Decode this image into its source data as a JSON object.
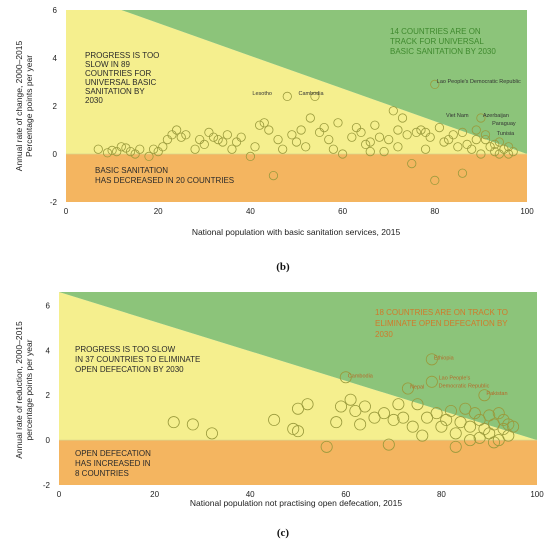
{
  "colors": {
    "green": "#8cc47a",
    "yellow": "#f5ef8e",
    "orange": "#f4b560",
    "marker": "#9a9a3c",
    "axis": "#222222"
  },
  "chart_data": [
    {
      "panel": "(b)",
      "type": "scatter",
      "xlabel": "National population with basic sanitation services, 2015",
      "ylabel": [
        "Annual rate of change, 2000–2015",
        "Percentage points per year"
      ],
      "xlim": [
        0,
        100
      ],
      "ylim": [
        -2,
        6
      ],
      "xticks": [
        "0",
        "20",
        "40",
        "60",
        "80",
        "100"
      ],
      "yticks": [
        "-2",
        "0",
        "2",
        "4",
        "6"
      ],
      "threshold_line": {
        "x": [
          12,
          100
        ],
        "y": [
          6,
          0
        ]
      },
      "regions": {
        "yellow": [
          "PROGRESS IS TOO",
          "SLOW IN 89",
          "COUNTRIES FOR",
          "UNIVERSAL BASIC",
          "SANITATION BY",
          "2030"
        ],
        "green": [
          "14 COUNTRIES ARE ON",
          "TRACK FOR UNIVERSAL",
          "BASIC SANITATION BY 2030"
        ],
        "orange": [
          "BASIC SANITATION",
          "HAS DECREASED IN 20 COUNTRIES"
        ]
      },
      "annotations": [
        {
          "text": "Lesotho",
          "x": 40,
          "y": 2.45
        },
        {
          "text": "Cambodia",
          "x": 50,
          "y": 2.45
        },
        {
          "text": "Lao People's Democratic Republic",
          "x": 80,
          "y": 2.95
        },
        {
          "text": "Viet Nam",
          "x": 82,
          "y": 1.55
        },
        {
          "text": "Azerbaijan",
          "x": 90,
          "y": 1.55
        },
        {
          "text": "Paraguay",
          "x": 92,
          "y": 1.2
        },
        {
          "text": "Tunisia",
          "x": 93,
          "y": 0.8
        }
      ],
      "points": [
        [
          7,
          0.2
        ],
        [
          9,
          0.05
        ],
        [
          10,
          0.15
        ],
        [
          11,
          0.1
        ],
        [
          12,
          0.3
        ],
        [
          13,
          0.25
        ],
        [
          14,
          0.1
        ],
        [
          15,
          0.0
        ],
        [
          16,
          0.2
        ],
        [
          18,
          -0.1
        ],
        [
          19,
          0.2
        ],
        [
          20,
          0.1
        ],
        [
          21,
          0.3
        ],
        [
          22,
          0.6
        ],
        [
          23,
          0.8
        ],
        [
          24,
          1.0
        ],
        [
          25,
          0.7
        ],
        [
          26,
          0.8
        ],
        [
          28,
          0.2
        ],
        [
          29,
          0.6
        ],
        [
          30,
          0.4
        ],
        [
          31,
          0.9
        ],
        [
          32,
          0.7
        ],
        [
          33,
          0.6
        ],
        [
          34,
          0.5
        ],
        [
          35,
          0.8
        ],
        [
          36,
          0.2
        ],
        [
          37,
          0.5
        ],
        [
          38,
          0.7
        ],
        [
          40,
          -0.1
        ],
        [
          41,
          0.3
        ],
        [
          42,
          1.2
        ],
        [
          43,
          1.3
        ],
        [
          44,
          1.0
        ],
        [
          45,
          -0.9
        ],
        [
          46,
          0.6
        ],
        [
          47,
          0.2
        ],
        [
          48,
          2.4
        ],
        [
          49,
          0.8
        ],
        [
          50,
          0.5
        ],
        [
          51,
          1.0
        ],
        [
          52,
          0.3
        ],
        [
          53,
          1.5
        ],
        [
          54,
          2.4
        ],
        [
          55,
          0.9
        ],
        [
          56,
          1.1
        ],
        [
          57,
          0.6
        ],
        [
          58,
          0.2
        ],
        [
          59,
          1.3
        ],
        [
          60,
          0.0
        ],
        [
          62,
          0.7
        ],
        [
          63,
          1.1
        ],
        [
          64,
          0.9
        ],
        [
          65,
          0.4
        ],
        [
          66,
          0.5
        ],
        [
          67,
          1.2
        ],
        [
          68,
          0.7
        ],
        [
          69,
          0.1
        ],
        [
          70,
          0.6
        ],
        [
          71,
          1.8
        ],
        [
          72,
          0.3
        ],
        [
          73,
          1.5
        ],
        [
          74,
          0.8
        ],
        [
          75,
          -0.4
        ],
        [
          76,
          0.9
        ],
        [
          77,
          1.0
        ],
        [
          78,
          0.2
        ],
        [
          79,
          0.7
        ],
        [
          80,
          -1.1
        ],
        [
          80,
          2.9
        ],
        [
          81,
          1.1
        ],
        [
          82,
          0.5
        ],
        [
          83,
          0.6
        ],
        [
          84,
          0.8
        ],
        [
          85,
          0.3
        ],
        [
          86,
          -0.8
        ],
        [
          87,
          0.4
        ],
        [
          88,
          0.2
        ],
        [
          89,
          0.6
        ],
        [
          90,
          1.5
        ],
        [
          91,
          0.8
        ],
        [
          92,
          0.3
        ],
        [
          93,
          0.1
        ],
        [
          94,
          0.5
        ],
        [
          95,
          0.2
        ],
        [
          96,
          0.0
        ],
        [
          97,
          0.1
        ],
        [
          89,
          1.0
        ],
        [
          86,
          0.9
        ],
        [
          78,
          0.9
        ],
        [
          93,
          0.4
        ],
        [
          91,
          0.6
        ],
        [
          94,
          0.0
        ],
        [
          72,
          1.0
        ],
        [
          66,
          0.1
        ],
        [
          90,
          0.0
        ],
        [
          96,
          0.3
        ]
      ]
    },
    {
      "panel": "(c)",
      "type": "scatter",
      "xlabel": "National population not practising open defecation, 2015",
      "ylabel": [
        "Annual rate of reduction, 2000–2015",
        "percentage points per year"
      ],
      "xlim": [
        0,
        100
      ],
      "ylim": [
        -2,
        6.6
      ],
      "xticks": [
        "0",
        "20",
        "40",
        "60",
        "80",
        "100"
      ],
      "yticks": [
        "-2",
        "0",
        "2",
        "4",
        "6"
      ],
      "threshold_line": {
        "x": [
          0,
          100
        ],
        "y": [
          6.6,
          0
        ]
      },
      "regions": {
        "yellow": [
          "PROGRESS IS TOO SLOW",
          "IN 37 COUNTRIES TO ELIMINATE",
          "OPEN DEFECATION BY 2030"
        ],
        "green": [
          "18 COUNTRIES ARE ON TRACK TO",
          "ELIMINATE OPEN DEFECATION BY",
          "2030"
        ],
        "orange": [
          "OPEN DEFECATION",
          "HAS INCREASED IN",
          "8 COUNTRIES"
        ]
      },
      "annotations": [
        {
          "text": "Cambodia",
          "x": 60,
          "y": 2.8
        },
        {
          "text": "Nepal",
          "x": 73,
          "y": 2.3
        },
        {
          "text": "Ethiopia",
          "x": 78,
          "y": 3.6
        },
        {
          "text": "Lao People's",
          "x": 79,
          "y": 2.7
        },
        {
          "text": "Democratic Republic",
          "x": 79,
          "y": 2.35
        },
        {
          "text": "Pakistan",
          "x": 89,
          "y": 2.0
        }
      ],
      "points": [
        [
          24,
          0.8
        ],
        [
          28,
          0.7
        ],
        [
          32,
          0.3
        ],
        [
          45,
          0.9
        ],
        [
          49,
          0.5
        ],
        [
          50,
          0.4
        ],
        [
          50,
          1.4
        ],
        [
          52,
          1.6
        ],
        [
          56,
          -0.3
        ],
        [
          58,
          0.8
        ],
        [
          59,
          1.5
        ],
        [
          60,
          2.8
        ],
        [
          61,
          1.8
        ],
        [
          62,
          1.3
        ],
        [
          63,
          0.7
        ],
        [
          64,
          1.5
        ],
        [
          66,
          1.0
        ],
        [
          68,
          1.2
        ],
        [
          69,
          -0.2
        ],
        [
          70,
          0.9
        ],
        [
          71,
          1.6
        ],
        [
          72,
          1.0
        ],
        [
          73,
          2.3
        ],
        [
          74,
          0.6
        ],
        [
          75,
          1.6
        ],
        [
          76,
          0.2
        ],
        [
          77,
          1.0
        ],
        [
          78,
          3.6
        ],
        [
          78,
          2.6
        ],
        [
          79,
          1.2
        ],
        [
          80,
          0.6
        ],
        [
          81,
          0.9
        ],
        [
          82,
          1.3
        ],
        [
          83,
          0.3
        ],
        [
          83,
          -0.3
        ],
        [
          84,
          0.8
        ],
        [
          85,
          1.4
        ],
        [
          86,
          0.6
        ],
        [
          86,
          0.0
        ],
        [
          87,
          1.2
        ],
        [
          88,
          0.9
        ],
        [
          89,
          2.0
        ],
        [
          89,
          0.5
        ],
        [
          90,
          1.1
        ],
        [
          90,
          0.3
        ],
        [
          91,
          0.7
        ],
        [
          92,
          1.2
        ],
        [
          92,
          0.0
        ],
        [
          93,
          0.9
        ],
        [
          93,
          0.5
        ],
        [
          94,
          0.7
        ],
        [
          94,
          0.2
        ],
        [
          95,
          0.6
        ],
        [
          88,
          0.1
        ],
        [
          91,
          -0.1
        ]
      ]
    }
  ]
}
